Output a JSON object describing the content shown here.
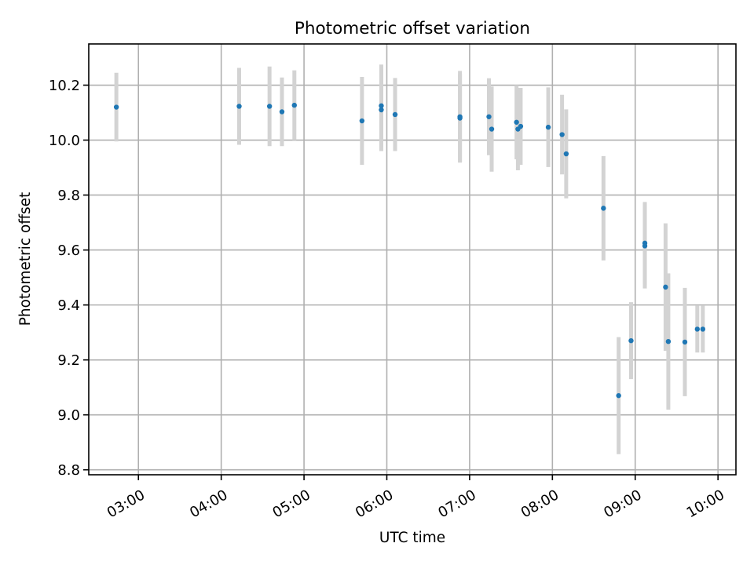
{
  "chart_data": {
    "type": "scatter",
    "title": "Photometric offset variation",
    "xlabel": "UTC time",
    "ylabel": "Photometric offset",
    "x_ticks": [
      "03:00",
      "04:00",
      "05:00",
      "06:00",
      "07:00",
      "08:00",
      "09:00",
      "10:00"
    ],
    "y_ticks": [
      "8.8",
      "9.0",
      "9.2",
      "9.4",
      "9.6",
      "9.8",
      "10.0",
      "10.2"
    ],
    "xlim": [
      "02:24",
      "10:13"
    ],
    "ylim": [
      8.782,
      10.35
    ],
    "grid": true,
    "colors": {
      "point": "#1f77b4",
      "errorbar": "#d3d3d3"
    },
    "points": [
      {
        "time": "02:44",
        "y": 10.12,
        "err": 0.125
      },
      {
        "time": "04:13",
        "y": 10.123,
        "err": 0.14
      },
      {
        "time": "04:35",
        "y": 10.123,
        "err": 0.145
      },
      {
        "time": "04:44",
        "y": 10.103,
        "err": 0.125
      },
      {
        "time": "04:53",
        "y": 10.127,
        "err": 0.127
      },
      {
        "time": "05:42",
        "y": 10.07,
        "err": 0.16
      },
      {
        "time": "05:56",
        "y": 10.125,
        "err": 0.15
      },
      {
        "time": "05:56",
        "y": 10.11,
        "err": 0.15
      },
      {
        "time": "06:06",
        "y": 10.093,
        "err": 0.133
      },
      {
        "time": "06:53",
        "y": 10.085,
        "err": 0.167
      },
      {
        "time": "06:53",
        "y": 10.08,
        "err": 0.16
      },
      {
        "time": "07:14",
        "y": 10.085,
        "err": 0.14
      },
      {
        "time": "07:16",
        "y": 10.04,
        "err": 0.155
      },
      {
        "time": "07:34",
        "y": 10.065,
        "err": 0.135
      },
      {
        "time": "07:35",
        "y": 10.04,
        "err": 0.15
      },
      {
        "time": "07:37",
        "y": 10.05,
        "err": 0.14
      },
      {
        "time": "07:57",
        "y": 10.047,
        "err": 0.145
      },
      {
        "time": "08:07",
        "y": 10.02,
        "err": 0.145
      },
      {
        "time": "08:10",
        "y": 9.95,
        "err": 0.162
      },
      {
        "time": "08:37",
        "y": 9.752,
        "err": 0.19
      },
      {
        "time": "08:48",
        "y": 9.07,
        "err": 0.213
      },
      {
        "time": "08:57",
        "y": 9.27,
        "err": 0.14
      },
      {
        "time": "09:07",
        "y": 9.625,
        "err": 0.15
      },
      {
        "time": "09:07",
        "y": 9.615,
        "err": 0.155
      },
      {
        "time": "09:22",
        "y": 9.465,
        "err": 0.232
      },
      {
        "time": "09:24",
        "y": 9.267,
        "err": 0.248
      },
      {
        "time": "09:36",
        "y": 9.265,
        "err": 0.197
      },
      {
        "time": "09:45",
        "y": 9.312,
        "err": 0.085
      },
      {
        "time": "09:49",
        "y": 9.312,
        "err": 0.085
      }
    ]
  }
}
